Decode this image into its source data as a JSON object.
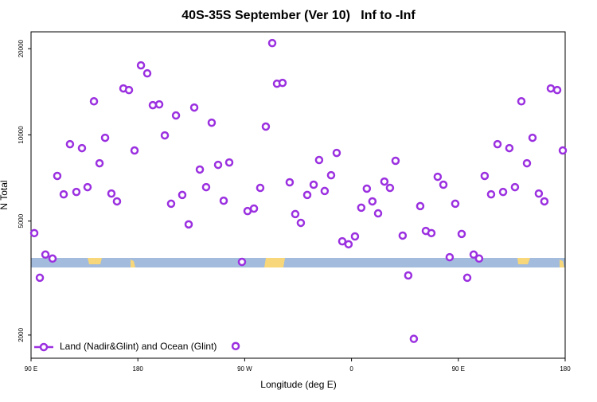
{
  "chart_data": {
    "type": "scatter",
    "title": "40S-35S September (Ver 10)   Inf to -Inf",
    "x_label": "Longitude (deg E)",
    "y_label": "N Total",
    "xlim": [
      90,
      540
    ],
    "ylim": [
      1660,
      22900
    ],
    "y_scale": "log",
    "grid": false,
    "legend": "bottom-left",
    "xticks": [
      {
        "value": 90,
        "label": "90 E"
      },
      180,
      {
        "value": 270,
        "label": "90 W"
      },
      {
        "value": 360,
        "label": "0"
      },
      {
        "value": 450,
        "label": "90 E"
      },
      {
        "value": 540,
        "label": "180"
      }
    ],
    "yticks": [
      2000,
      5000,
      10000,
      20000
    ],
    "series": [
      {
        "name": "Land (Nadir&Glint) and Ocean (Glint)",
        "color": "#9b30e0",
        "x": [
          92.7,
          97.4,
          102.1,
          108.1,
          112.1,
          117.5,
          122.8,
          128.2,
          132.9,
          137.6,
          143.0,
          147.7,
          152.4,
          157.7,
          162.4,
          167.8,
          172.5,
          177.2,
          182.6,
          187.9,
          192.6,
          198.0,
          202.7,
          208.0,
          212.1,
          217.4,
          222.8,
          227.5,
          232.2,
          237.5,
          242.2,
          247.6,
          252.3,
          257.0,
          262.4,
          267.7,
          272.4,
          277.8,
          283.1,
          287.8,
          293.2,
          297.2,
          301.9,
          307.9,
          312.6,
          317.3,
          322.7,
          328.1,
          332.7,
          337.4,
          342.8,
          347.5,
          352.2,
          357.5,
          362.9,
          368.2,
          372.9,
          377.6,
          382.4,
          387.7,
          392.4,
          397.1,
          403.1,
          407.8,
          412.5,
          417.9,
          422.6,
          427.3,
          432.6,
          437.4,
          442.7,
          447.4,
          452.8,
          457.5,
          462.9,
          467.5,
          472.2,
          477.6,
          483.0,
          487.7,
          493.0,
          497.7,
          503.1,
          507.8,
          512.5,
          517.8,
          522.5,
          527.9,
          533.3,
          538.0
        ],
        "values": [
          4540,
          3170,
          3820,
          3700,
          7190,
          6200,
          9280,
          6320,
          8990,
          6570,
          13100,
          7960,
          9770,
          6240,
          5860,
          14530,
          14340,
          8820,
          17490,
          16400,
          12700,
          12780,
          9960,
          5750,
          11690,
          6170,
          4870,
          12460,
          7570,
          6570,
          11030,
          7860,
          5890,
          8010,
          1830,
          3600,
          5420,
          5530,
          6530,
          10690,
          20920,
          15090,
          15190,
          6830,
          5290,
          4930,
          6170,
          6700,
          8170,
          6370,
          7230,
          8650,
          4250,
          4150,
          4420,
          5570,
          6490,
          5860,
          5320,
          6870,
          6530,
          8120,
          4450,
          3230,
          1940,
          5640,
          4620,
          4540,
          7140,
          6700,
          3740,
          5750,
          4510,
          3170,
          3820,
          3700,
          7190,
          6200,
          9280,
          6320,
          8990,
          6570,
          13100,
          7960,
          9770,
          6240,
          5860,
          14530,
          14340,
          8820
        ]
      }
    ]
  }
}
